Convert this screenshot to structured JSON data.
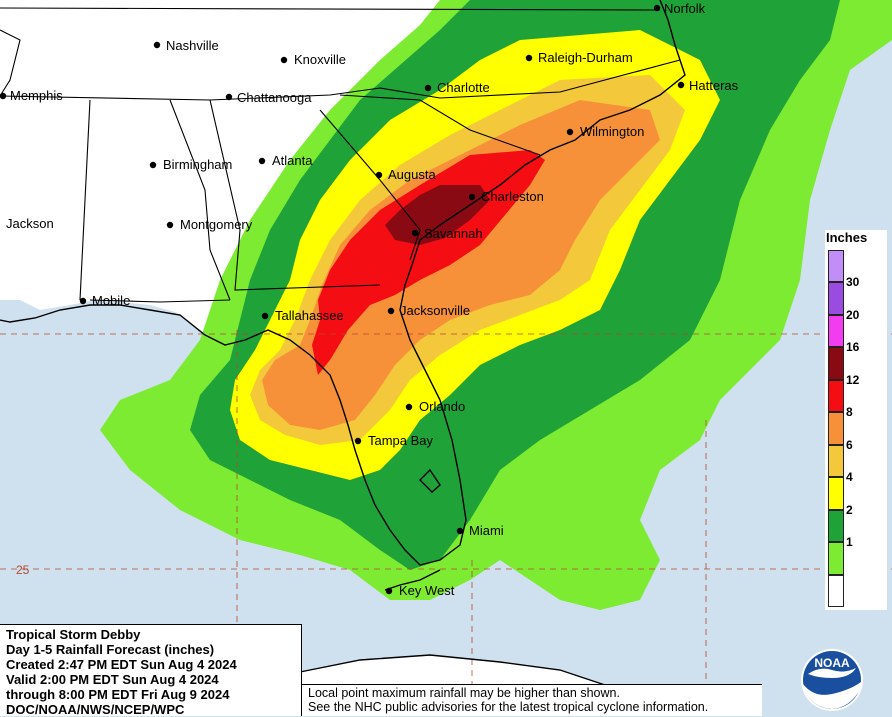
{
  "map": {
    "cities": [
      {
        "name": "Norfolk"
      },
      {
        "name": "Nashville"
      },
      {
        "name": "Knoxville"
      },
      {
        "name": "Raleigh-Durham"
      },
      {
        "name": "Memphis"
      },
      {
        "name": "Chattanooga"
      },
      {
        "name": "Charlotte"
      },
      {
        "name": "Hatteras"
      },
      {
        "name": "Wilmington"
      },
      {
        "name": "Birmingham"
      },
      {
        "name": "Atlanta"
      },
      {
        "name": "Augusta"
      },
      {
        "name": "Charleston"
      },
      {
        "name": "Jackson"
      },
      {
        "name": "Montgomery"
      },
      {
        "name": "Savannah"
      },
      {
        "name": "Mobile"
      },
      {
        "name": "Tallahassee"
      },
      {
        "name": "Jacksonville"
      },
      {
        "name": "Orlando"
      },
      {
        "name": "Tampa Bay"
      },
      {
        "name": "Miami"
      },
      {
        "name": "Key West"
      }
    ],
    "latitude_label": "25"
  },
  "legend": {
    "title": "Inches",
    "entries": [
      {
        "value": "30",
        "color": "#9a4ce0"
      },
      {
        "value": "20",
        "color": "#f23cf0"
      },
      {
        "value": "16",
        "color": "#8a0a14"
      },
      {
        "value": "12",
        "color": "#f40d12"
      },
      {
        "value": "8",
        "color": "#f6913a"
      },
      {
        "value": "6",
        "color": "#f3c93b"
      },
      {
        "value": "4",
        "color": "#ffff00"
      },
      {
        "value": "2",
        "color": "#1fa238"
      },
      {
        "value": "1",
        "color": "#7ceb32"
      }
    ],
    "top_color": "#c18ef7",
    "bottom_color": "#ffffff"
  },
  "info": {
    "line1": "Tropical Storm Debby",
    "line2": "Day 1-5 Rainfall Forecast (inches)",
    "line3": "Created 2:47 PM EDT Sun Aug 4 2024",
    "line4": "Valid 2:00 PM EDT Sun Aug 4 2024",
    "line5": "through 8:00 PM EDT Fri Aug 9 2024",
    "line6": "DOC/NOAA/NWS/NCEP/WPC"
  },
  "note": {
    "line1": "Local point maximum rainfall may be higher than shown.",
    "line2": "See the NHC public advisories for the latest tropical cyclone information."
  },
  "logo": {
    "text": "NOAA"
  }
}
